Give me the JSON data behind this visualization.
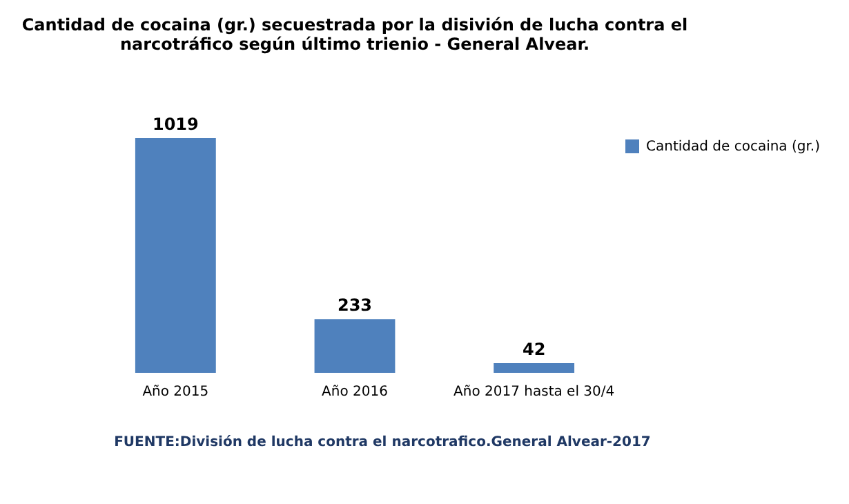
{
  "chart_data": {
    "type": "bar",
    "title": [
      "Cantidad de cocaina (gr.) secuestrada por la disivión de lucha contra el",
      "narcotráfico según último trienio - General Alvear."
    ],
    "categories": [
      "Año 2015",
      "Año 2016",
      "Año 2017 hasta el 30/4"
    ],
    "series": [
      {
        "name": "Cantidad de cocaina (gr.)",
        "color": "#4f81bd",
        "values": [
          1019,
          233,
          42
        ]
      }
    ],
    "data_labels": true,
    "legend": "right",
    "annotations": [
      "FUENTE:División de lucha contra el narcotrafico.General Alvear-2017"
    ]
  }
}
